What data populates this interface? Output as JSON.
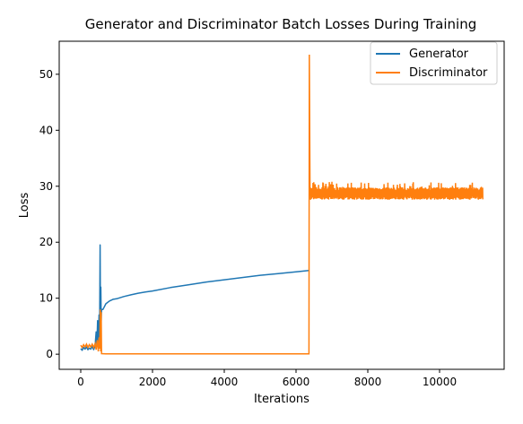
{
  "chart_data": {
    "type": "line",
    "title": "Generator and Discriminator Batch Losses During Training",
    "xlabel": "Iterations",
    "ylabel": "Loss",
    "xlim": [
      -600,
      11800
    ],
    "ylim": [
      -2.7,
      55.9
    ],
    "xticks": [
      0,
      2000,
      4000,
      6000,
      8000,
      10000
    ],
    "xtick_labels": [
      "0",
      "2000",
      "4000",
      "6000",
      "8000",
      "10000"
    ],
    "yticks": [
      0,
      10,
      20,
      30,
      40,
      50
    ],
    "ytick_labels": [
      "0",
      "10",
      "20",
      "30",
      "40",
      "50"
    ],
    "grid": false,
    "legend_position": "top-right",
    "colors": {
      "generator": "#1f77b4",
      "discriminator": "#ff7f0e"
    },
    "series": [
      {
        "name": "Generator",
        "color": "#1f77b4",
        "points": [
          [
            0,
            1.0
          ],
          [
            40,
            0.7
          ],
          [
            80,
            1.2
          ],
          [
            120,
            0.9
          ],
          [
            160,
            1.3
          ],
          [
            200,
            0.8
          ],
          [
            240,
            1.1
          ],
          [
            280,
            0.9
          ],
          [
            320,
            1.4
          ],
          [
            360,
            0.8
          ],
          [
            400,
            1.5
          ],
          [
            430,
            4.0
          ],
          [
            450,
            1.5
          ],
          [
            470,
            6.0
          ],
          [
            490,
            2.0
          ],
          [
            510,
            7.0
          ],
          [
            525,
            3.0
          ],
          [
            540,
            19.5
          ],
          [
            550,
            5.0
          ],
          [
            560,
            12.0
          ],
          [
            570,
            6.0
          ],
          [
            580,
            8.0
          ],
          [
            620,
            8.0
          ],
          [
            700,
            9.0
          ],
          [
            800,
            9.5
          ],
          [
            900,
            9.8
          ],
          [
            1000,
            9.9
          ],
          [
            1200,
            10.3
          ],
          [
            1400,
            10.6
          ],
          [
            1600,
            10.9
          ],
          [
            1800,
            11.1
          ],
          [
            2000,
            11.3
          ],
          [
            2500,
            11.9
          ],
          [
            3000,
            12.4
          ],
          [
            3500,
            12.9
          ],
          [
            4000,
            13.3
          ],
          [
            4500,
            13.7
          ],
          [
            5000,
            14.1
          ],
          [
            5500,
            14.4
          ],
          [
            6000,
            14.7
          ],
          [
            6360,
            14.95
          ]
        ]
      },
      {
        "name": "Discriminator",
        "color": "#ff7f0e",
        "points": [
          [
            0,
            1.6
          ],
          [
            40,
            1.2
          ],
          [
            80,
            1.7
          ],
          [
            120,
            1.3
          ],
          [
            160,
            1.8
          ],
          [
            200,
            1.2
          ],
          [
            240,
            1.7
          ],
          [
            280,
            1.3
          ],
          [
            320,
            1.8
          ],
          [
            360,
            1.2
          ],
          [
            400,
            1.9
          ],
          [
            430,
            0.8
          ],
          [
            460,
            2.5
          ],
          [
            490,
            0.5
          ],
          [
            510,
            3.0
          ],
          [
            530,
            1.0
          ],
          [
            545,
            8.0
          ],
          [
            555,
            0.5
          ],
          [
            570,
            7.5
          ],
          [
            580,
            0.1
          ],
          [
            700,
            0.05
          ],
          [
            1000,
            0.05
          ],
          [
            2000,
            0.05
          ],
          [
            3000,
            0.05
          ],
          [
            4000,
            0.05
          ],
          [
            5000,
            0.05
          ],
          [
            6000,
            0.05
          ],
          [
            6360,
            0.05
          ],
          [
            6370,
            53.5
          ],
          [
            6390,
            28.5
          ]
        ]
      }
    ],
    "discriminator_noise_band": {
      "x_start": 6400,
      "x_end": 11200,
      "y_low": 27.6,
      "y_high": 30.8
    }
  }
}
